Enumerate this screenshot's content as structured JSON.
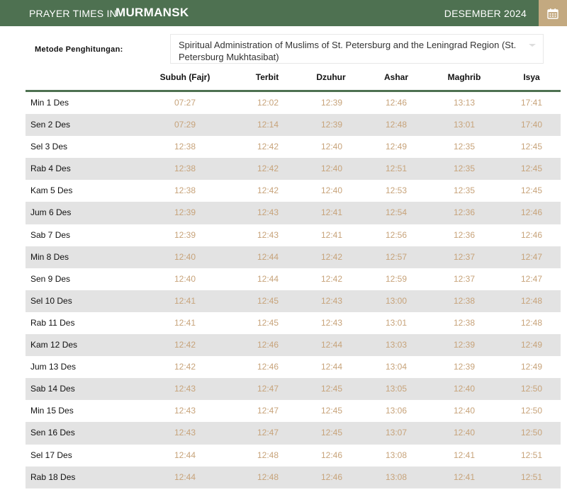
{
  "header": {
    "prefix": "PRAYER TIMES IN",
    "city": "MURMANSK",
    "month": "DESEMBER 2024",
    "calendar_icon": "calendar-icon"
  },
  "method": {
    "label": "Metode Penghitungan:",
    "value": "Spiritual Administration of Muslims of St. Petersburg and the Leningrad Region (St. Petersburg Mukhtasibat)"
  },
  "columns": [
    "Subuh (Fajr)",
    "Terbit",
    "Dzuhur",
    "Ashar",
    "Maghrib",
    "Isya"
  ],
  "rows": [
    {
      "day": "Min 1 Des",
      "times": [
        "07:27",
        "12:02",
        "12:39",
        "12:46",
        "13:13",
        "17:41"
      ]
    },
    {
      "day": "Sen 2 Des",
      "times": [
        "07:29",
        "12:14",
        "12:39",
        "12:48",
        "13:01",
        "17:40"
      ]
    },
    {
      "day": "Sel 3 Des",
      "times": [
        "12:38",
        "12:42",
        "12:40",
        "12:49",
        "12:35",
        "12:45"
      ]
    },
    {
      "day": "Rab 4 Des",
      "times": [
        "12:38",
        "12:42",
        "12:40",
        "12:51",
        "12:35",
        "12:45"
      ]
    },
    {
      "day": "Kam 5 Des",
      "times": [
        "12:38",
        "12:42",
        "12:40",
        "12:53",
        "12:35",
        "12:45"
      ]
    },
    {
      "day": "Jum 6 Des",
      "times": [
        "12:39",
        "12:43",
        "12:41",
        "12:54",
        "12:36",
        "12:46"
      ]
    },
    {
      "day": "Sab 7 Des",
      "times": [
        "12:39",
        "12:43",
        "12:41",
        "12:56",
        "12:36",
        "12:46"
      ]
    },
    {
      "day": "Min 8 Des",
      "times": [
        "12:40",
        "12:44",
        "12:42",
        "12:57",
        "12:37",
        "12:47"
      ]
    },
    {
      "day": "Sen 9 Des",
      "times": [
        "12:40",
        "12:44",
        "12:42",
        "12:59",
        "12:37",
        "12:47"
      ]
    },
    {
      "day": "Sel 10 Des",
      "times": [
        "12:41",
        "12:45",
        "12:43",
        "13:00",
        "12:38",
        "12:48"
      ]
    },
    {
      "day": "Rab 11 Des",
      "times": [
        "12:41",
        "12:45",
        "12:43",
        "13:01",
        "12:38",
        "12:48"
      ]
    },
    {
      "day": "Kam 12 Des",
      "times": [
        "12:42",
        "12:46",
        "12:44",
        "13:03",
        "12:39",
        "12:49"
      ]
    },
    {
      "day": "Jum 13 Des",
      "times": [
        "12:42",
        "12:46",
        "12:44",
        "13:04",
        "12:39",
        "12:49"
      ]
    },
    {
      "day": "Sab 14 Des",
      "times": [
        "12:43",
        "12:47",
        "12:45",
        "13:05",
        "12:40",
        "12:50"
      ]
    },
    {
      "day": "Min 15 Des",
      "times": [
        "12:43",
        "12:47",
        "12:45",
        "13:06",
        "12:40",
        "12:50"
      ]
    },
    {
      "day": "Sen 16 Des",
      "times": [
        "12:43",
        "12:47",
        "12:45",
        "13:07",
        "12:40",
        "12:50"
      ]
    },
    {
      "day": "Sel 17 Des",
      "times": [
        "12:44",
        "12:48",
        "12:46",
        "13:08",
        "12:41",
        "12:51"
      ]
    },
    {
      "day": "Rab 18 Des",
      "times": [
        "12:44",
        "12:48",
        "12:46",
        "13:08",
        "12:41",
        "12:51"
      ]
    }
  ]
}
